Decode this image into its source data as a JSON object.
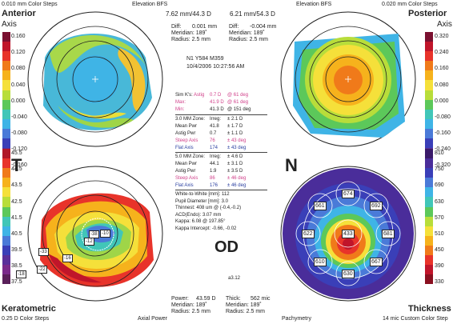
{
  "anterior": {
    "label": "Anterior",
    "axis": "Axis",
    "steps": "0.010 mm Color Steps",
    "bfs": "Elevation BFS",
    "scale": [
      "0.160",
      "0.120",
      "0.080",
      "0.040",
      "0.000",
      "-0.040",
      "-0.080",
      "-0.120",
      "-0.160"
    ],
    "colors": [
      "#7a1030",
      "#c0152a",
      "#e8332a",
      "#f07a1a",
      "#f6b21c",
      "#f5e03a",
      "#b8dd3a",
      "#5cc85a",
      "#41c6b8",
      "#3fb4e6",
      "#4a7ad8",
      "#3a3fb8",
      "#5a2f9a",
      "#7a2a8a"
    ]
  },
  "bfs_values": {
    "anterior": "7.62 mm/44.3 D",
    "posterior": "6.21 mm/54.3 D"
  },
  "diff_anterior": {
    "diff_label": "Diff:",
    "diff": "0.001 mm",
    "meridian": "Meridian: 189˚",
    "radius": "Radius:  2.5 mm"
  },
  "diff_posterior": {
    "diff_label": "Diff:",
    "diff": "-0.004 mm",
    "meridian": "Meridian: 189˚",
    "radius": "Radius:  2.5 mm"
  },
  "patient": {
    "id": "N1 Y584 M359",
    "datetime": "10/4/2006 10:27:56 AM"
  },
  "simk": {
    "astig": [
      "Sim K's:",
      "Astig",
      "0.7 D",
      "@ 61 deg"
    ],
    "max": [
      "Max:",
      "41.9 D",
      "@ 61 deg"
    ],
    "min": [
      "Min:",
      "41.3 D",
      "@ 151 deg"
    ]
  },
  "zone3": {
    "title": "3.0 MM Zone:",
    "irreg": "Irreg:",
    "irreg_v": "± 2.1 D",
    "rows": [
      [
        "Mean Pwr",
        "41.8",
        "± 1.7 D"
      ],
      [
        "Astig Pwr",
        "0.7",
        "± 1.1 D"
      ],
      [
        "Steep Axis",
        "76",
        "± 43 deg"
      ],
      [
        "Flat Axis",
        "174",
        "± 43 deg"
      ]
    ]
  },
  "zone5": {
    "title": "5.0 MM Zone:",
    "irreg": "Irreg:",
    "irreg_v": "± 4.6 D",
    "rows": [
      [
        "Mean Pwr",
        "44.1",
        "± 3.1 D"
      ],
      [
        "Astig Pwr",
        "1.9",
        "± 3.5 D"
      ],
      [
        "Steep Axis",
        "86",
        "± 46 deg"
      ],
      [
        "Flat Axis",
        "176",
        "± 46 deg"
      ]
    ]
  },
  "misc": [
    "White-to-White [mm]: 112",
    "Pupil Diameter [mm]: 3.0",
    "Thinnest: 408 um @ (-0.4,-0.2)",
    "ACD(Endo): 3.07 mm",
    "Kappa: 6.08 @ 197.85°",
    "Kappa Intercept: -0.66, -0.02"
  ],
  "posterior": {
    "label": "Posterior",
    "axis": "Axis",
    "steps": "0.020 mm Color Steps",
    "bfs": "Elevation BFS",
    "scale": [
      "0.320",
      "0.240",
      "0.160",
      "0.080",
      "0.000",
      "-0.080",
      "-0.160",
      "-0.240",
      "-0.320"
    ],
    "colors": [
      "#7a1030",
      "#c0152a",
      "#e8332a",
      "#f07a1a",
      "#f6b21c",
      "#f5e03a",
      "#b8dd3a",
      "#5cc85a",
      "#41c6b8",
      "#3fb4e6",
      "#4a7ad8",
      "#3a3fb8",
      "#5a2f9a",
      "#7a2a8a"
    ]
  },
  "keratometric": {
    "label": "Keratometric",
    "steps": "0.25 D Color Steps",
    "axial": "Axial Power",
    "scale": [
      "45.5",
      "44.5",
      "43.5",
      "42.5",
      "41.5",
      "40.5",
      "39.5",
      "38.5",
      "37.5"
    ],
    "colors": [
      "#b01828",
      "#e8332a",
      "#f07a1a",
      "#f6b21c",
      "#f5e03a",
      "#b8dd3a",
      "#5cc85a",
      "#41c6b8",
      "#3fb4e6",
      "#4a7ad8",
      "#3a3fb8",
      "#5a2f9a",
      "#7a2a8a",
      "#5a205a"
    ],
    "cells": [
      "-10",
      "-12",
      "-33",
      "-16",
      "-22",
      "-18",
      "-38"
    ]
  },
  "thickness": {
    "label": "Thickness",
    "steps": "14 mic Custom Color Step",
    "pachy": "Pachymetry",
    "scale": [
      "810",
      "750",
      "690",
      "630",
      "570",
      "510",
      "450",
      "390",
      "330"
    ],
    "colors": [
      "#3a1a6a",
      "#4a2d9a",
      "#3a3fb8",
      "#4a7ad8",
      "#3fb4e6",
      "#41c6b8",
      "#5cc85a",
      "#b8dd3a",
      "#f5e03a",
      "#f6b21c",
      "#f07a1a",
      "#e8332a",
      "#c0152a",
      "#8a1020"
    ],
    "cells": [
      "661",
      "674",
      "692",
      "622",
      "433",
      "681",
      "610",
      "667",
      "630"
    ]
  },
  "letters": {
    "t": "T",
    "n": "N",
    "od": "OD"
  },
  "footer_left": {
    "power": "Power:",
    "power_v": "43.59 D",
    "meridian": "Meridian: 189˚",
    "radius": "Radius:  2.5 mm"
  },
  "footer_right": {
    "thick": "Thick:",
    "thick_v": "562 mic",
    "meridian": "Meridian: 189˚",
    "radius": "Radius:  2.5 mm"
  },
  "version": "a3.12"
}
